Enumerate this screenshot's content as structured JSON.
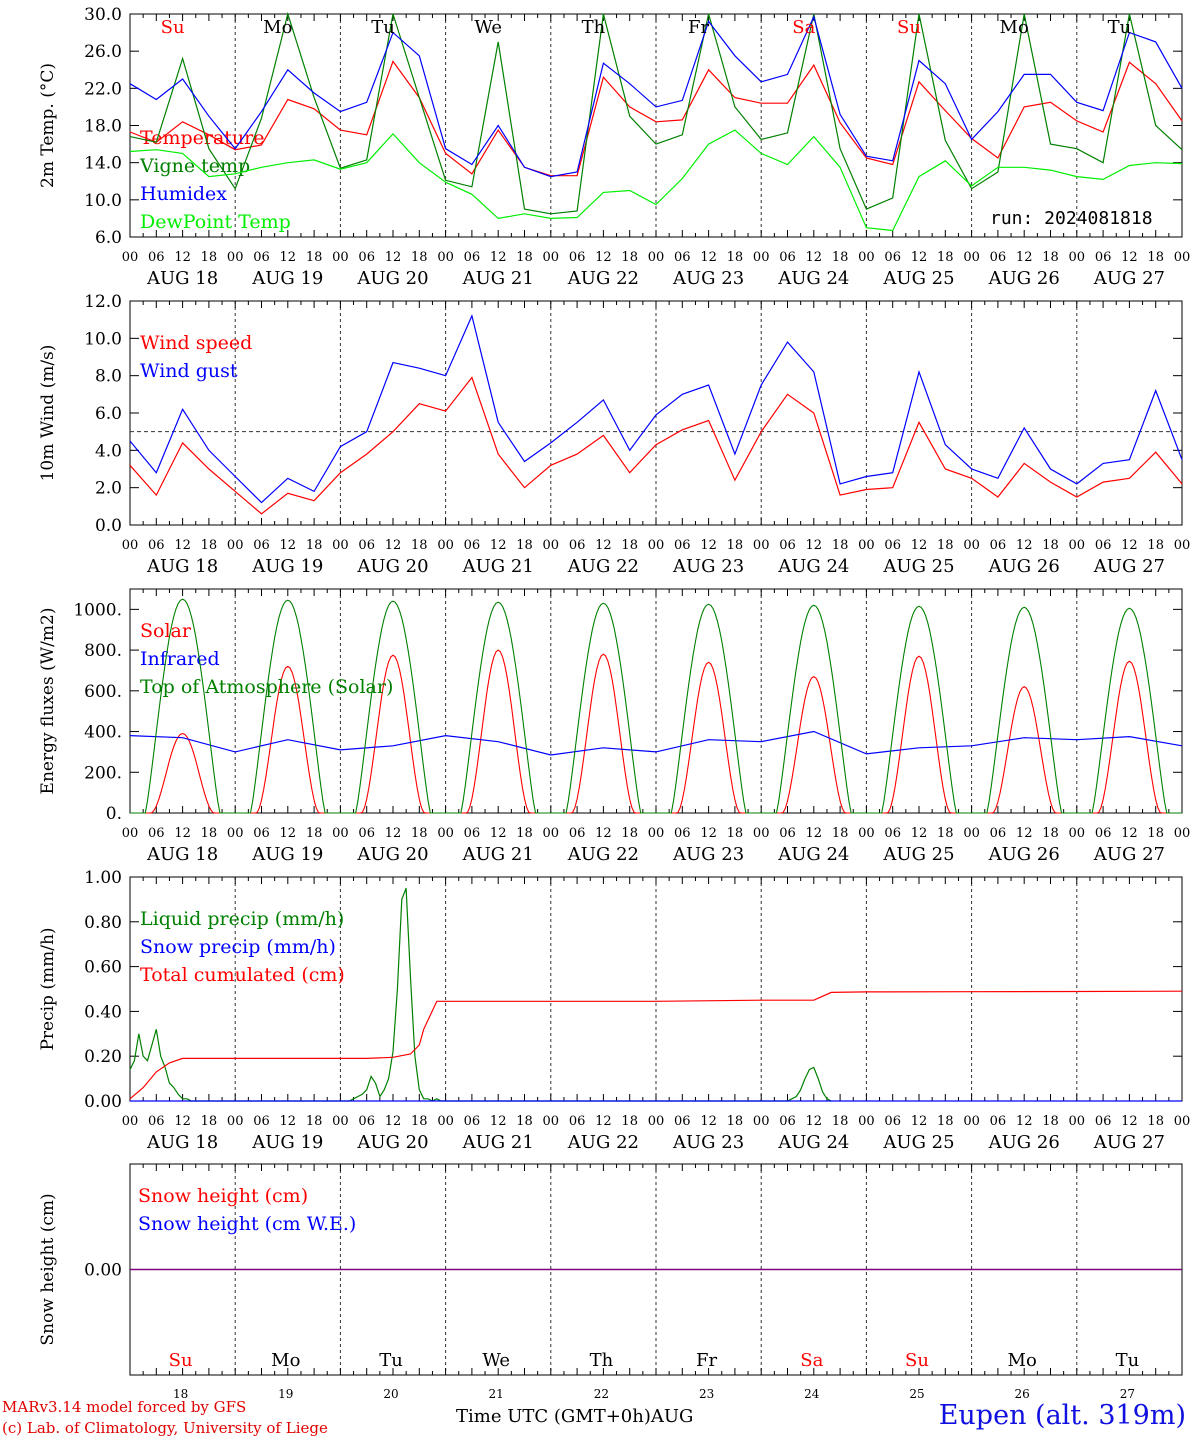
{
  "footer": {
    "model": "MARv3.14 model forced by GFS",
    "credit": "(c) Lab. of Climatology, University of Liege",
    "time_axis": "Time UTC (GMT+0h)AUG",
    "station": "Eupen (alt. 319m)"
  },
  "run_label": "run: 2024081818",
  "colors": {
    "red": "#ff0000",
    "green": "#008000",
    "blue": "#0000ff",
    "lightgreen": "#00ee00",
    "purple": "#800080"
  },
  "day_names": [
    "Su",
    "Mo",
    "Tu",
    "We",
    "Th",
    "Fr",
    "Sa",
    "Su",
    "Mo",
    "Tu"
  ],
  "day_name_colors": [
    "red",
    "black",
    "black",
    "black",
    "black",
    "black",
    "red",
    "red",
    "black",
    "black"
  ],
  "date_labels": [
    "AUG 18",
    "AUG 19",
    "AUG 20",
    "AUG 21",
    "AUG 22",
    "AUG 23",
    "AUG 24",
    "AUG 25",
    "AUG 26",
    "AUG 27"
  ],
  "bottom_dates": [
    "18",
    "19",
    "20",
    "21",
    "22",
    "23",
    "24",
    "25",
    "26",
    "27"
  ],
  "hour_ticks": [
    "00",
    "06",
    "12",
    "18"
  ],
  "last_hour_tick": "00",
  "chart_data": [
    {
      "type": "line",
      "ylabel": "2m Temp. (°C)",
      "ylim": [
        6,
        30
      ],
      "yticks": [
        "6.0",
        "10.0",
        "14.0",
        "18.0",
        "22.0",
        "26.0",
        "30.0"
      ],
      "x_unit": "hours since AUG 18 00 UTC",
      "series": [
        {
          "name": "Temperature",
          "color": "red",
          "x": [
            0,
            6,
            12,
            18,
            24,
            30,
            36,
            42,
            48,
            54,
            60,
            66,
            72,
            78,
            84,
            90,
            96,
            102,
            108,
            114,
            120,
            126,
            132,
            138,
            144,
            150,
            156,
            162,
            168,
            174,
            180,
            186,
            192,
            198,
            204,
            210,
            216,
            222,
            228,
            234,
            240
          ],
          "values": [
            17.3,
            16.2,
            18.4,
            17.0,
            15.4,
            15.9,
            20.8,
            19.8,
            17.5,
            17.0,
            24.9,
            21.0,
            15.0,
            12.8,
            17.5,
            13.5,
            12.6,
            12.6,
            23.2,
            20.0,
            18.4,
            18.6,
            24.0,
            21.0,
            20.4,
            20.4,
            24.5,
            18.3,
            14.5,
            13.8,
            22.7,
            19.6,
            16.6,
            14.5,
            20.0,
            20.5,
            18.5,
            17.3,
            24.8,
            22.5,
            18.5
          ]
        },
        {
          "name": "Vigne temp",
          "color": "green",
          "x": [
            0,
            6,
            12,
            18,
            24,
            30,
            36,
            42,
            48,
            54,
            60,
            66,
            72,
            78,
            84,
            90,
            96,
            102,
            108,
            114,
            120,
            126,
            132,
            138,
            144,
            150,
            156,
            162,
            168,
            174,
            180,
            186,
            192,
            198,
            204,
            210,
            216,
            222,
            228,
            234,
            240
          ],
          "values": [
            16.8,
            16.2,
            25.2,
            15.5,
            11.2,
            18.8,
            30.0,
            21.0,
            13.4,
            14.3,
            30.0,
            21.0,
            12.1,
            11.4,
            27.0,
            9.0,
            8.5,
            8.8,
            30.0,
            19.0,
            16.0,
            17.0,
            30.0,
            20.0,
            16.5,
            17.2,
            30.0,
            15.5,
            9.0,
            10.2,
            30.0,
            16.4,
            11.2,
            13.0,
            30.0,
            16.0,
            15.5,
            14.0,
            30.0,
            18.0,
            15.4
          ]
        },
        {
          "name": "Humidex",
          "color": "blue",
          "x": [
            0,
            6,
            12,
            18,
            24,
            30,
            36,
            42,
            48,
            54,
            60,
            66,
            72,
            78,
            84,
            90,
            96,
            102,
            108,
            114,
            120,
            126,
            132,
            138,
            144,
            150,
            156,
            162,
            168,
            174,
            180,
            186,
            192,
            198,
            204,
            210,
            216,
            222,
            228,
            234,
            240
          ],
          "values": [
            22.5,
            20.8,
            23.0,
            19.0,
            15.5,
            19.5,
            24.0,
            21.5,
            19.5,
            20.5,
            28.0,
            25.5,
            15.5,
            13.8,
            18.0,
            13.5,
            12.5,
            13.0,
            24.7,
            22.5,
            20.0,
            20.7,
            29.2,
            25.5,
            22.7,
            23.5,
            29.7,
            19.2,
            14.7,
            14.2,
            25.0,
            22.5,
            16.5,
            19.5,
            23.5,
            23.5,
            20.5,
            19.6,
            28.0,
            27.0,
            22.0
          ]
        },
        {
          "name": "DewPoint Temp",
          "color": "lightgreen",
          "x": [
            0,
            6,
            12,
            18,
            24,
            30,
            36,
            42,
            48,
            54,
            60,
            66,
            72,
            78,
            84,
            90,
            96,
            102,
            108,
            114,
            120,
            126,
            132,
            138,
            144,
            150,
            156,
            162,
            168,
            174,
            180,
            186,
            192,
            198,
            204,
            210,
            216,
            222,
            228,
            234,
            240
          ],
          "values": [
            15.2,
            15.4,
            15.0,
            12.5,
            12.8,
            13.5,
            14.0,
            14.3,
            13.3,
            14.0,
            17.1,
            14.0,
            11.9,
            10.6,
            8.0,
            8.5,
            8.0,
            8.1,
            10.8,
            11.0,
            9.5,
            12.3,
            16.0,
            17.5,
            15.0,
            13.8,
            16.8,
            13.5,
            7.0,
            6.7,
            12.5,
            14.2,
            11.5,
            13.5,
            13.5,
            13.2,
            12.5,
            12.2,
            13.7,
            14.0,
            13.9
          ]
        }
      ]
    },
    {
      "type": "line",
      "ylabel": "10m Wind (m/s)",
      "ylim": [
        0,
        12
      ],
      "yticks": [
        "0.0",
        "2.0",
        "4.0",
        "6.0",
        "8.0",
        "10.0",
        "12.0"
      ],
      "reference_line": 5.0,
      "series": [
        {
          "name": "Wind speed",
          "color": "red",
          "x": [
            0,
            6,
            12,
            18,
            24,
            30,
            36,
            42,
            48,
            54,
            60,
            66,
            72,
            78,
            84,
            90,
            96,
            102,
            108,
            114,
            120,
            126,
            132,
            138,
            144,
            150,
            156,
            162,
            168,
            174,
            180,
            186,
            192,
            198,
            204,
            210,
            216,
            222,
            228,
            234,
            240
          ],
          "values": [
            3.2,
            1.6,
            4.4,
            3.0,
            1.8,
            0.6,
            1.7,
            1.3,
            2.8,
            3.8,
            5.0,
            6.5,
            6.1,
            7.9,
            3.8,
            2.0,
            3.2,
            3.8,
            4.8,
            2.8,
            4.3,
            5.1,
            5.6,
            2.4,
            5.0,
            7.0,
            6.0,
            1.6,
            1.9,
            2.0,
            5.5,
            3.0,
            2.5,
            1.5,
            3.3,
            2.3,
            1.5,
            2.3,
            2.5,
            3.9,
            2.2
          ]
        },
        {
          "name": "Wind gust",
          "color": "blue",
          "x": [
            0,
            6,
            12,
            18,
            24,
            30,
            36,
            42,
            48,
            54,
            60,
            66,
            72,
            78,
            84,
            90,
            96,
            102,
            108,
            114,
            120,
            126,
            132,
            138,
            144,
            150,
            156,
            162,
            168,
            174,
            180,
            186,
            192,
            198,
            204,
            210,
            216,
            222,
            228,
            234,
            240
          ],
          "values": [
            4.5,
            2.8,
            6.2,
            4.0,
            2.6,
            1.2,
            2.5,
            1.8,
            4.2,
            5.0,
            8.7,
            8.4,
            8.0,
            11.2,
            5.5,
            3.4,
            4.4,
            5.5,
            6.7,
            4.0,
            5.9,
            7.0,
            7.5,
            3.8,
            7.5,
            9.8,
            8.2,
            2.2,
            2.6,
            2.8,
            8.2,
            4.3,
            3.0,
            2.5,
            5.2,
            3.0,
            2.2,
            3.3,
            3.5,
            7.2,
            3.5
          ]
        }
      ]
    },
    {
      "type": "line",
      "ylabel": "Energy fluxes (W/m2)",
      "ylim": [
        0,
        1100
      ],
      "yticks": [
        "0.",
        "200.",
        "400.",
        "600.",
        "800.",
        "1000."
      ],
      "series": [
        {
          "name": "Solar",
          "color": "red",
          "daily_peak": [
            390,
            720,
            775,
            800,
            780,
            740,
            670,
            770,
            620,
            745
          ]
        },
        {
          "name": "Infrared",
          "color": "blue",
          "x": [
            0,
            12,
            24,
            36,
            48,
            60,
            72,
            84,
            96,
            108,
            120,
            132,
            144,
            156,
            168,
            180,
            192,
            204,
            216,
            228,
            240
          ],
          "values": [
            380,
            370,
            300,
            360,
            310,
            330,
            380,
            350,
            285,
            320,
            300,
            360,
            350,
            400,
            290,
            320,
            330,
            370,
            360,
            375,
            330
          ]
        },
        {
          "name": "Top of Atmosphere (Solar)",
          "color": "green",
          "daily_peak": [
            1050,
            1045,
            1040,
            1035,
            1030,
            1025,
            1020,
            1015,
            1010,
            1005
          ]
        }
      ]
    },
    {
      "type": "line",
      "ylabel": "Precip (mm/h)",
      "ylim": [
        0,
        1
      ],
      "yticks": [
        "0.00",
        "0.20",
        "0.40",
        "0.60",
        "0.80",
        "1.00"
      ],
      "series": [
        {
          "name": "Liquid precip (mm/h)",
          "color": "green",
          "x": [
            0,
            1,
            2,
            3,
            4,
            5,
            6,
            7,
            8,
            9,
            10,
            11,
            12,
            13,
            14,
            50,
            51,
            52,
            53,
            54,
            55,
            56,
            57,
            58,
            59,
            60,
            61,
            62,
            63,
            64,
            65,
            66,
            67,
            68,
            69,
            70,
            71,
            72,
            150,
            151,
            152,
            153,
            154,
            155,
            156,
            157,
            158,
            159,
            160
          ],
          "values": [
            0.14,
            0.18,
            0.3,
            0.2,
            0.18,
            0.25,
            0.32,
            0.2,
            0.15,
            0.08,
            0.06,
            0.03,
            0.01,
            0.01,
            0.0,
            0.0,
            0.01,
            0.02,
            0.03,
            0.05,
            0.11,
            0.08,
            0.02,
            0.05,
            0.1,
            0.22,
            0.5,
            0.9,
            0.95,
            0.55,
            0.2,
            0.05,
            0.01,
            0.01,
            0.0,
            0.01,
            0.0,
            0.0,
            0.0,
            0.01,
            0.02,
            0.05,
            0.1,
            0.14,
            0.15,
            0.1,
            0.04,
            0.01,
            0.0
          ]
        },
        {
          "name": "Snow precip (mm/h)",
          "color": "blue",
          "x": [
            0,
            240
          ],
          "values": [
            0,
            0
          ]
        },
        {
          "name": "Total cumulated (cm)",
          "color": "red",
          "x": [
            0,
            3,
            6,
            9,
            12,
            18,
            24,
            36,
            48,
            54,
            60,
            64,
            66,
            67,
            70,
            72,
            96,
            120,
            144,
            156,
            160,
            168,
            192,
            216,
            240
          ],
          "values": [
            0.01,
            0.06,
            0.13,
            0.17,
            0.19,
            0.19,
            0.19,
            0.19,
            0.19,
            0.19,
            0.195,
            0.21,
            0.25,
            0.32,
            0.445,
            0.445,
            0.445,
            0.445,
            0.45,
            0.45,
            0.485,
            0.487,
            0.488,
            0.489,
            0.49
          ]
        }
      ]
    },
    {
      "type": "line",
      "ylabel": "Snow height (cm)",
      "yticks": [
        "0.00"
      ],
      "series": [
        {
          "name": "Snow height (cm)",
          "color": "red",
          "x": [
            0,
            240
          ],
          "values": [
            0,
            0
          ]
        },
        {
          "name": "Snow height (cm W.E.)",
          "color": "blue",
          "x": [
            0,
            240
          ],
          "values": [
            0,
            0
          ]
        }
      ]
    }
  ]
}
